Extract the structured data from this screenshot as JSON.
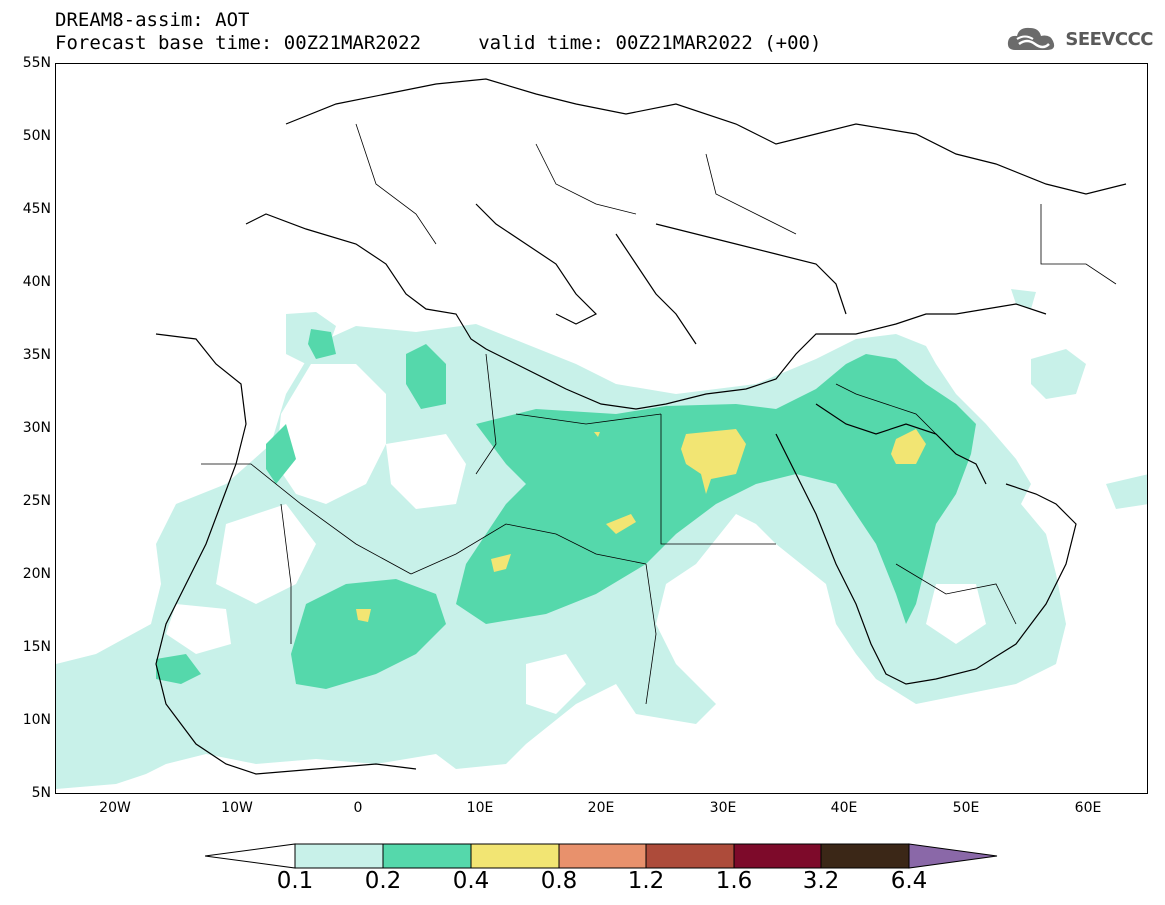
{
  "header": {
    "title_line1": "DREAM8-assim: AOT",
    "title_line2": "Forecast base time: 00Z21MAR2022     valid time: 00Z21MAR2022 (+00)"
  },
  "logo": {
    "text": "SEEVCCC",
    "icon": "cloud-icon"
  },
  "map": {
    "lat_labels": [
      "55N",
      "50N",
      "45N",
      "40N",
      "35N",
      "30N",
      "25N",
      "20N",
      "15N",
      "10N",
      "5N"
    ],
    "lon_labels": [
      "20W",
      "10W",
      "0",
      "10E",
      "20E",
      "30E",
      "40E",
      "50E",
      "60E"
    ],
    "extent": {
      "lon_min": -25,
      "lon_max": 65,
      "lat_min": 5,
      "lat_max": 55
    }
  },
  "colorbar": {
    "labels": [
      "0.1",
      "0.2",
      "0.4",
      "0.8",
      "1.2",
      "1.6",
      "3.2",
      "6.4"
    ],
    "colors": [
      "#ffffff",
      "#c8f1e9",
      "#55d8ab",
      "#f2e573",
      "#e8916c",
      "#ad4b3a",
      "#7d0a2a",
      "#3b2717",
      "#8a68a8"
    ]
  }
}
